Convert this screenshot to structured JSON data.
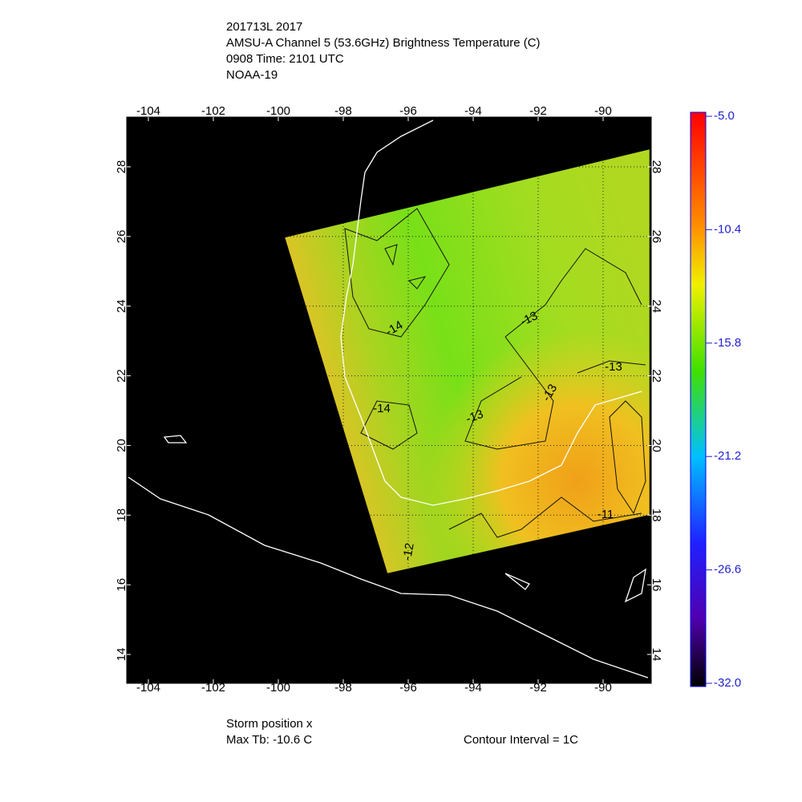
{
  "header": {
    "lines": [
      "201713L 2017",
      "AMSU-A Channel 5 (53.6GHz) Brightness Temperature (C)",
      "0908 Time: 2101 UTC",
      "NOAA-19"
    ]
  },
  "map": {
    "lon_ticks": [
      -104,
      -102,
      -100,
      -98,
      -96,
      -94,
      -92,
      -90
    ],
    "lat_ticks": [
      14,
      16,
      18,
      20,
      22,
      24,
      26,
      28
    ],
    "contour_labels": [
      "-13",
      "-14",
      "-14",
      "-13",
      "-13",
      "-13",
      "-12",
      "-11"
    ]
  },
  "colorbar": {
    "ticks": [
      {
        "value": -5,
        "label": "-5.0"
      },
      {
        "value": -10.4,
        "label": "-10.4"
      },
      {
        "value": -15.8,
        "label": "-15.8"
      },
      {
        "value": -21.2,
        "label": "-21.2"
      },
      {
        "value": -26.6,
        "label": "-26.6"
      },
      {
        "value": -32,
        "label": "-32.0"
      }
    ]
  },
  "footer": {
    "storm": "Storm position x",
    "max": "Max Tb: -10.6    C",
    "interval": "Contour Interval = 1C"
  }
}
